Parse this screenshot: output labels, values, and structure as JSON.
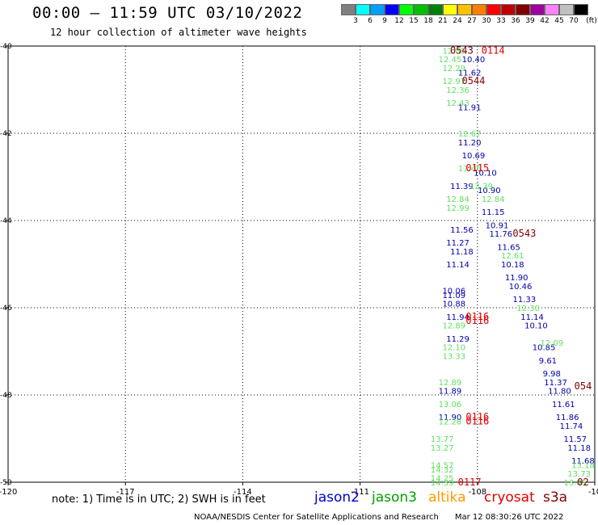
{
  "header": {
    "title": "00:00 – 11:59 UTC 03/10/2022",
    "subtitle": "12 hour collection of altimeter wave heights"
  },
  "color_scale": {
    "unit": "(ft)",
    "swatches": [
      "#808080",
      "#00ffff",
      "#00a0ff",
      "#0000ff",
      "#00ff00",
      "#00c000",
      "#008000",
      "#ffff00",
      "#ffc000",
      "#ff8000",
      "#ff0000",
      "#c00000",
      "#800000",
      "#a000a0",
      "#ff80ff",
      "#c0c0c0",
      "#000000"
    ],
    "labels": [
      "3",
      "6",
      "9",
      "12",
      "15",
      "18",
      "21",
      "24",
      "27",
      "30",
      "33",
      "36",
      "39",
      "42",
      "45",
      "70"
    ]
  },
  "chart_data": {
    "type": "scatter",
    "title": "00:00 – 11:59 UTC 03/10/2022",
    "subtitle": "12 hour collection of altimeter wave heights",
    "xlim": [
      -120,
      -105
    ],
    "ylim": [
      -50,
      -40
    ],
    "x_ticks": [
      "-120",
      "-117",
      "-114",
      "-111",
      "-108",
      "-10"
    ],
    "y_ticks": [
      "-40",
      "-42",
      "-44",
      "-46",
      "-48",
      "-50"
    ],
    "grid": true,
    "series": [
      {
        "name": "jason2",
        "color": "#0000aa",
        "points": [
          [
            -108.1,
            -40.3,
            "10.40"
          ],
          [
            -108.2,
            -40.6,
            "11.62"
          ],
          [
            -108.2,
            -41.4,
            "11.91"
          ],
          [
            -108.2,
            -42.2,
            "11.20"
          ],
          [
            -108.1,
            -42.5,
            "10.69"
          ],
          [
            -107.8,
            -42.9,
            "10.10"
          ],
          [
            -108.4,
            -43.2,
            "11.39"
          ],
          [
            -107.7,
            -43.3,
            "10.90"
          ],
          [
            -107.6,
            -43.8,
            "11.15"
          ],
          [
            -107.5,
            -44.1,
            "10.91"
          ],
          [
            -108.4,
            -44.2,
            "11.56"
          ],
          [
            -107.4,
            -44.3,
            "11.76"
          ],
          [
            -108.5,
            -44.5,
            "11.27"
          ],
          [
            -108.4,
            -44.7,
            "11.18"
          ],
          [
            -107.2,
            -44.6,
            "11.65"
          ],
          [
            -107.1,
            -45.0,
            "10.18"
          ],
          [
            -108.5,
            -45.0,
            "11.14"
          ],
          [
            -107.0,
            -45.3,
            "11.90"
          ],
          [
            -106.9,
            -45.5,
            "10.46"
          ],
          [
            -108.6,
            -45.6,
            "10.06"
          ],
          [
            -108.6,
            -45.7,
            "11.09"
          ],
          [
            -108.6,
            -45.9,
            "10.88"
          ],
          [
            -106.8,
            -45.8,
            "11.33"
          ],
          [
            -108.5,
            -46.2,
            "11.94"
          ],
          [
            -106.6,
            -46.2,
            "11.14"
          ],
          [
            -106.5,
            -46.4,
            "10.10"
          ],
          [
            -108.5,
            -46.7,
            "11.29"
          ],
          [
            -106.3,
            -46.9,
            "10.85"
          ],
          [
            -106.2,
            -47.2,
            "9.61"
          ],
          [
            -106.1,
            -47.5,
            "9.98"
          ],
          [
            -106.0,
            -47.7,
            "11.37"
          ],
          [
            -108.7,
            -47.9,
            "11.89"
          ],
          [
            -105.9,
            -47.9,
            "11.80"
          ],
          [
            -105.8,
            -48.2,
            "11.61"
          ],
          [
            -108.7,
            -48.5,
            "11.90"
          ],
          [
            -105.7,
            -48.5,
            "11.86"
          ],
          [
            -105.6,
            -48.7,
            "11.74"
          ],
          [
            -105.5,
            -49.0,
            "11.57"
          ],
          [
            -105.4,
            -49.2,
            "11.18"
          ],
          [
            -105.3,
            -49.5,
            "11.68"
          ]
        ]
      },
      {
        "name": "jason3",
        "color": "#60e060",
        "points": [
          [
            -108.6,
            -40.1,
            "12.85"
          ],
          [
            -108.7,
            -40.3,
            "12.45"
          ],
          [
            -108.6,
            -40.5,
            "12.29"
          ],
          [
            -108.6,
            -40.8,
            "12.97"
          ],
          [
            -108.5,
            -41.0,
            "12.36"
          ],
          [
            -108.5,
            -41.3,
            "12.43"
          ],
          [
            -108.2,
            -42.0,
            "12.67"
          ],
          [
            -108.2,
            -42.8,
            "13.46"
          ],
          [
            -107.9,
            -43.2,
            "12.39"
          ],
          [
            -107.6,
            -43.5,
            "12.84"
          ],
          [
            -108.5,
            -43.5,
            "12.84"
          ],
          [
            -108.5,
            -43.7,
            "12.99"
          ],
          [
            -107.1,
            -44.8,
            "12.61"
          ],
          [
            -106.7,
            -46.0,
            "12.30"
          ],
          [
            -108.6,
            -46.4,
            "12.89"
          ],
          [
            -106.1,
            -46.8,
            "12.09"
          ],
          [
            -108.6,
            -46.9,
            "12.10"
          ],
          [
            -108.6,
            -47.1,
            "13.33"
          ],
          [
            -108.7,
            -47.7,
            "12.89"
          ],
          [
            -108.7,
            -48.2,
            "13.06"
          ],
          [
            -108.7,
            -48.6,
            "12.28"
          ],
          [
            -108.9,
            -49.0,
            "13.77"
          ],
          [
            -108.9,
            -49.2,
            "13.27"
          ],
          [
            -108.9,
            -49.6,
            "14.57"
          ],
          [
            -108.9,
            -49.7,
            "14.32"
          ],
          [
            -108.9,
            -49.9,
            "14.25"
          ],
          [
            -108.9,
            -50.0,
            "14.39"
          ],
          [
            -105.4,
            -49.8,
            "13.73"
          ],
          [
            -105.5,
            -50.0,
            "13.85"
          ],
          [
            -105.3,
            -49.6,
            "13.18"
          ]
        ]
      },
      {
        "name": "altika",
        "color": "#ff9900",
        "points": []
      },
      {
        "name": "cryosat",
        "color": "#e00000",
        "points": [
          [
            -107.6,
            -40.1,
            "0114"
          ],
          [
            -108.0,
            -42.8,
            "0115"
          ],
          [
            -108.0,
            -46.2,
            "0116"
          ],
          [
            -108.0,
            -46.3,
            "0116"
          ],
          [
            -108.0,
            -48.5,
            "0116"
          ],
          [
            -108.0,
            -48.6,
            "0116"
          ],
          [
            -108.2,
            -50.0,
            "0117"
          ]
        ]
      },
      {
        "name": "s3a",
        "color": "#800000",
        "points": [
          [
            -108.4,
            -40.1,
            "0543"
          ],
          [
            -108.1,
            -40.8,
            "0544"
          ],
          [
            -106.8,
            -44.3,
            "0543"
          ],
          [
            -105.3,
            -47.8,
            "054"
          ],
          [
            -105.3,
            -50.0,
            "02"
          ]
        ]
      }
    ]
  },
  "note": "note: 1) Time is in UTC; 2) SWH is in feet",
  "legend": {
    "jason2": "jason2",
    "jason3": "jason3",
    "altika": "altika",
    "cryosat": "cryosat",
    "s3a": "s3a"
  },
  "footer": {
    "credit": "NOAA/NESDIS Center for Satellite Applications and Research",
    "timestamp": "Mar 12 08:30:26 UTC 2022"
  }
}
